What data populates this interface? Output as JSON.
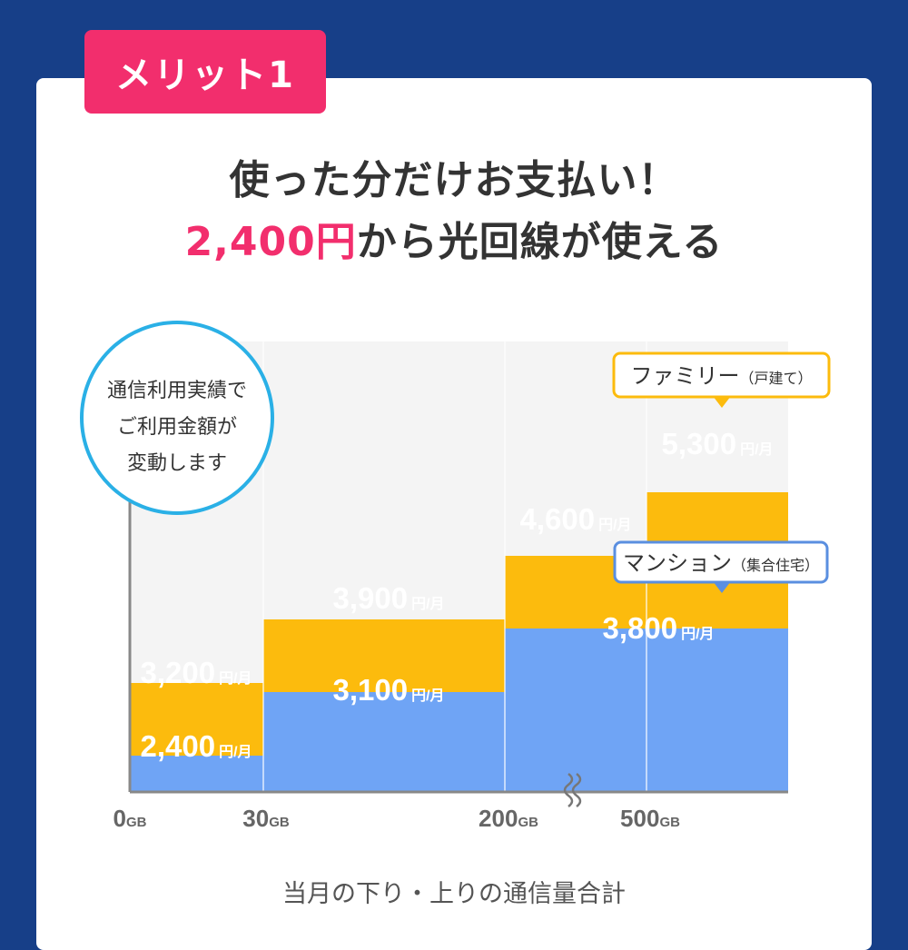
{
  "badge": "メリット1",
  "headline": {
    "line1": "使った分だけお支払い！",
    "price": "2,400円",
    "line2_rest": "から光回線が使える"
  },
  "callout_circle": [
    "通信利用実績で",
    "ご利用金額が",
    "変動します"
  ],
  "legend": {
    "family": {
      "label": "ファミリー",
      "note": "（戸建て）"
    },
    "mansion": {
      "label": "マンション",
      "note": "（集合住宅）"
    }
  },
  "colors": {
    "background": "#173f88",
    "accent": "#f22e6d",
    "family_bar": "#fcbb0d",
    "mansion_bar": "#6fa4f5",
    "plot_bg": "#f4f4f4"
  },
  "chart_data": {
    "type": "bar",
    "subtype": "step",
    "x": [
      0,
      30,
      200,
      500
    ],
    "tick_labels": [
      {
        "value": "0",
        "unit": "GB"
      },
      {
        "value": "30",
        "unit": "GB"
      },
      {
        "value": "200",
        "unit": "GB"
      },
      {
        "value": "500",
        "unit": "GB"
      }
    ],
    "axis_break": "between 200GB and 500GB",
    "xlabel": "当月の下り・上りの通信量合計",
    "value_unit": "円/月",
    "segments": [
      "0-30GB",
      "30-200GB",
      "200-500GB",
      "500GB+"
    ],
    "series": [
      {
        "name": "ファミリー（戸建て）",
        "values": [
          3200,
          3900,
          4600,
          5300
        ],
        "labels": [
          "3,200",
          "3,900",
          "4,600",
          "5,300"
        ]
      },
      {
        "name": "マンション（集合住宅）",
        "values": [
          2400,
          3100,
          3800,
          3800
        ],
        "labels": [
          "2,400",
          "3,100",
          "3,800",
          ""
        ]
      }
    ]
  }
}
